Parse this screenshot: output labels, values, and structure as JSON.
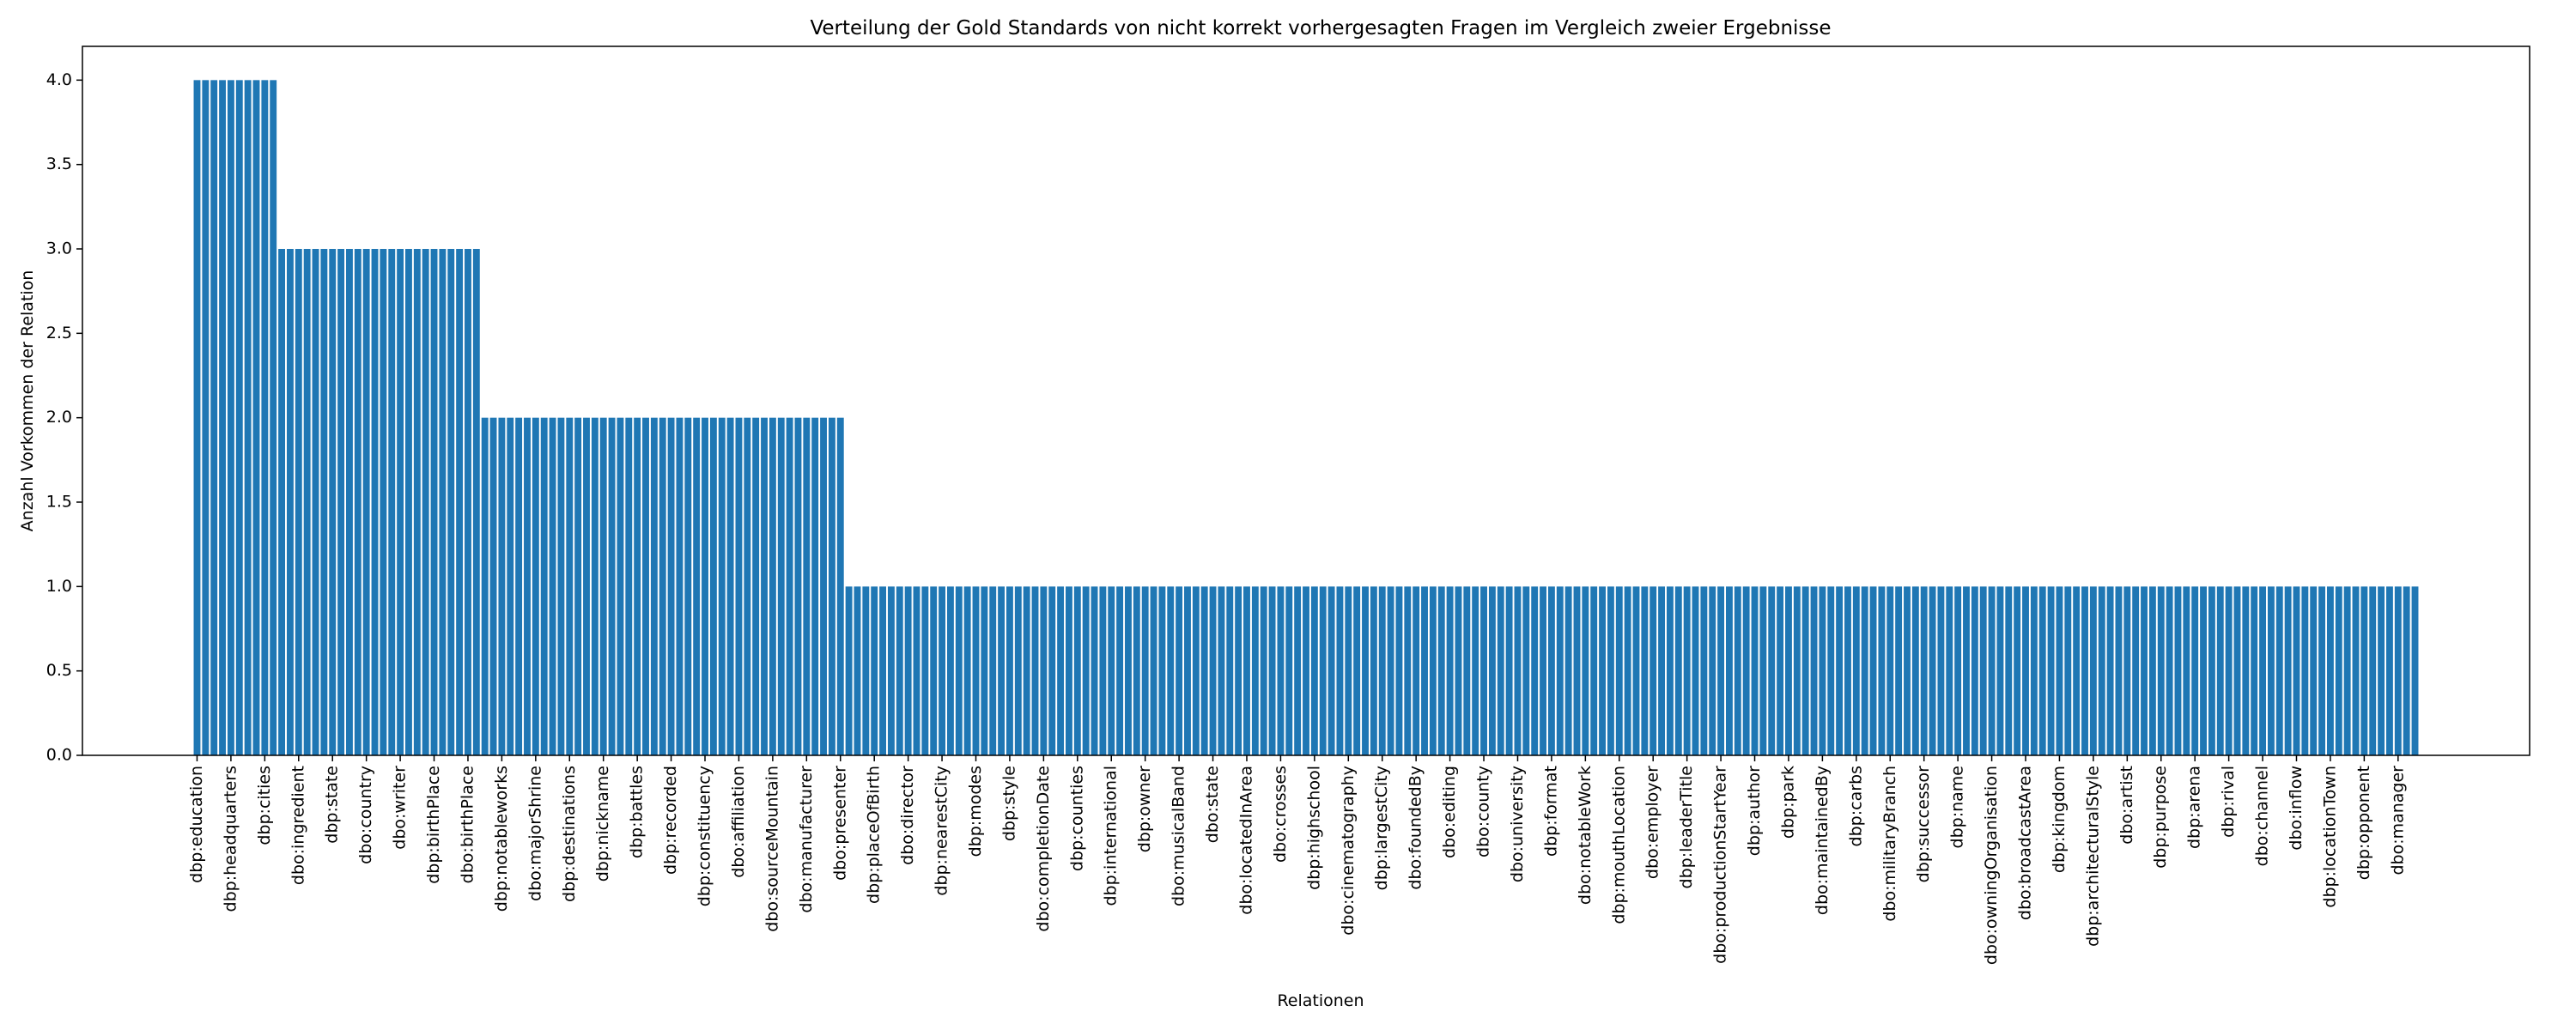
{
  "chart_data": {
    "type": "bar",
    "title": "Verteilung der Gold Standards von nicht korrekt vorhergesagten Fragen im Vergleich zweier Ergebnisse",
    "xlabel": "Relationen",
    "ylabel": "Anzahl Vorkommen der Relation",
    "color": "#1f77b4",
    "categories": [
      "dbp:education",
      null,
      null,
      null,
      "dbp:headquarters",
      null,
      null,
      null,
      "dbp:cities",
      null,
      null,
      null,
      "dbo:ingredient",
      null,
      null,
      null,
      "dbp:state",
      null,
      null,
      null,
      "dbo:country",
      null,
      null,
      null,
      "dbo:writer",
      null,
      null,
      null,
      "dbp:birthPlace",
      null,
      null,
      null,
      "dbo:birthPlace",
      null,
      null,
      null,
      "dbp:notableworks",
      null,
      null,
      null,
      "dbo:majorShrine",
      null,
      null,
      null,
      "dbp:destinations",
      null,
      null,
      null,
      "dbp:nickname",
      null,
      null,
      null,
      "dbp:battles",
      null,
      null,
      null,
      "dbp:recorded",
      null,
      null,
      null,
      "dbp:constituency",
      null,
      null,
      null,
      "dbo:affiliation",
      null,
      null,
      null,
      "dbo:sourceMountain",
      null,
      null,
      null,
      "dbo:manufacturer",
      null,
      null,
      null,
      "dbo:presenter",
      null,
      null,
      null,
      "dbp:placeOfBirth",
      null,
      null,
      null,
      "dbo:director",
      null,
      null,
      null,
      "dbp:nearestCity",
      null,
      null,
      null,
      "dbp:modes",
      null,
      null,
      null,
      "dbp:style",
      null,
      null,
      null,
      "dbo:completionDate",
      null,
      null,
      null,
      "dbp:counties",
      null,
      null,
      null,
      "dbp:international",
      null,
      null,
      null,
      "dbp:owner",
      null,
      null,
      null,
      "dbo:musicalBand",
      null,
      null,
      null,
      "dbo:state",
      null,
      null,
      null,
      "dbo:locatedInArea",
      null,
      null,
      null,
      "dbo:crosses",
      null,
      null,
      null,
      "dbp:highschool",
      null,
      null,
      null,
      "dbo:cinematography",
      null,
      null,
      null,
      "dbp:largestCity",
      null,
      null,
      null,
      "dbo:foundedBy",
      null,
      null,
      null,
      "dbo:editing",
      null,
      null,
      null,
      "dbo:county",
      null,
      null,
      null,
      "dbo:university",
      null,
      null,
      null,
      "dbp:format",
      null,
      null,
      null,
      "dbo:notableWork",
      null,
      null,
      null,
      "dbp:mouthLocation",
      null,
      null,
      null,
      "dbo:employer",
      null,
      null,
      null,
      "dbp:leaderTitle",
      null,
      null,
      null,
      "dbo:productionStartYear",
      null,
      null,
      null,
      "dbp:author",
      null,
      null,
      null,
      "dbp:park",
      null,
      null,
      null,
      "dbo:maintainedBy",
      null,
      null,
      null,
      "dbp:carbs",
      null,
      null,
      null,
      "dbo:militaryBranch",
      null,
      null,
      null,
      "dbp:successor",
      null,
      null,
      null,
      "dbp:name",
      null,
      null,
      null,
      "dbo:owningOrganisation",
      null,
      null,
      null,
      "dbo:broadcastArea",
      null,
      null,
      null,
      "dbp:kingdom",
      null,
      null,
      null,
      "dbp:architecturalStyle",
      null,
      null,
      null,
      "dbo:artist",
      null,
      null,
      null,
      "dbp:purpose",
      null,
      null,
      null,
      "dbp:arena",
      null,
      null,
      null,
      "dbp:rival",
      null,
      null,
      null,
      "dbo:channel",
      null,
      null,
      null,
      "dbo:inflow",
      null,
      null,
      null,
      "dbp:locationTown",
      null,
      null,
      null,
      "dbp:opponent",
      null,
      null,
      null,
      "dbo:manager",
      null,
      null
    ],
    "values": [
      4,
      4,
      4,
      4,
      4,
      4,
      4,
      4,
      4,
      4,
      3,
      3,
      3,
      3,
      3,
      3,
      3,
      3,
      3,
      3,
      3,
      3,
      3,
      3,
      3,
      3,
      3,
      3,
      3,
      3,
      3,
      3,
      3,
      3,
      2,
      2,
      2,
      2,
      2,
      2,
      2,
      2,
      2,
      2,
      2,
      2,
      2,
      2,
      2,
      2,
      2,
      2,
      2,
      2,
      2,
      2,
      2,
      2,
      2,
      2,
      2,
      2,
      2,
      2,
      2,
      2,
      2,
      2,
      2,
      2,
      2,
      2,
      2,
      2,
      2,
      2,
      2,
      1,
      1,
      1,
      1,
      1,
      1,
      1,
      1,
      1,
      1,
      1,
      1,
      1,
      1,
      1,
      1,
      1,
      1,
      1,
      1,
      1,
      1,
      1,
      1,
      1,
      1,
      1,
      1,
      1,
      1,
      1,
      1,
      1,
      1,
      1,
      1,
      1,
      1,
      1,
      1,
      1,
      1,
      1,
      1,
      1,
      1,
      1,
      1,
      1,
      1,
      1,
      1,
      1,
      1,
      1,
      1,
      1,
      1,
      1,
      1,
      1,
      1,
      1,
      1,
      1,
      1,
      1,
      1,
      1,
      1,
      1,
      1,
      1,
      1,
      1,
      1,
      1,
      1,
      1,
      1,
      1,
      1,
      1,
      1,
      1,
      1,
      1,
      1,
      1,
      1,
      1,
      1,
      1,
      1,
      1,
      1,
      1,
      1,
      1,
      1,
      1,
      1,
      1,
      1,
      1,
      1,
      1,
      1,
      1,
      1,
      1,
      1,
      1,
      1,
      1,
      1,
      1,
      1,
      1,
      1,
      1,
      1,
      1,
      1,
      1,
      1,
      1,
      1,
      1,
      1,
      1,
      1,
      1,
      1,
      1,
      1,
      1,
      1,
      1,
      1,
      1,
      1,
      1,
      1,
      1,
      1,
      1,
      1,
      1,
      1,
      1,
      1,
      1,
      1,
      1,
      1,
      1,
      1,
      1,
      1,
      1,
      1,
      1,
      1,
      1,
      1,
      1,
      1,
      1,
      1,
      1,
      1,
      1,
      1,
      1,
      1,
      1,
      1,
      1,
      1,
      1,
      1,
      1,
      1,
      1,
      1
    ],
    "ylim": [
      0,
      4.2
    ],
    "yticks": [
      {
        "value": 0,
        "label": "0.0"
      },
      {
        "value": 0.5,
        "label": "0.5"
      },
      {
        "value": 1,
        "label": "1.0"
      },
      {
        "value": 1.5,
        "label": "1.5"
      },
      {
        "value": 2,
        "label": "2.0"
      },
      {
        "value": 2.5,
        "label": "2.5"
      },
      {
        "value": 3,
        "label": "3.0"
      },
      {
        "value": 3.5,
        "label": "3.5"
      },
      {
        "value": 4,
        "label": "4.0"
      }
    ],
    "grid": false
  }
}
